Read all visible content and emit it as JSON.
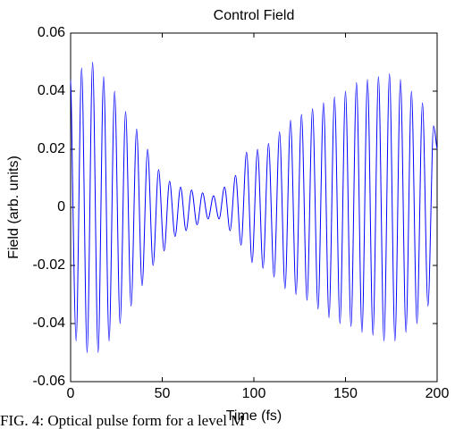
{
  "chart_data": {
    "type": "line",
    "title": "Control Field",
    "xlabel": "Time (fs)",
    "ylabel": "Field (arb. units)",
    "caption": "FIG. 4: Optical pulse form for a level M",
    "x": [
      0,
      3,
      6,
      9,
      12,
      15,
      18,
      21,
      24,
      27,
      30,
      33,
      36,
      39,
      42,
      45,
      48,
      51,
      54,
      57,
      60,
      63,
      66,
      69,
      72,
      75,
      78,
      81,
      84,
      87,
      90,
      93,
      96,
      99,
      102,
      105,
      108,
      111,
      114,
      117,
      120,
      123,
      126,
      129,
      132,
      135,
      138,
      141,
      144,
      147,
      150,
      153,
      156,
      159,
      162,
      165,
      168,
      171,
      174,
      177,
      180,
      183,
      186,
      189,
      192,
      195,
      198,
      200
    ],
    "series": [
      {
        "name": "Control field",
        "color": "#0000ff",
        "values": [
          0.044,
          -0.046,
          0.048,
          -0.05,
          0.05,
          -0.05,
          0.045,
          -0.046,
          0.04,
          -0.04,
          0.033,
          -0.034,
          0.027,
          -0.027,
          0.02,
          -0.02,
          0.013,
          -0.015,
          0.009,
          -0.01,
          0.007,
          -0.008,
          0.006,
          -0.006,
          0.005,
          -0.004,
          0.004,
          -0.004,
          0.007,
          -0.008,
          0.011,
          -0.013,
          0.019,
          -0.019,
          0.02,
          -0.021,
          0.022,
          -0.024,
          0.026,
          -0.028,
          0.03,
          -0.03,
          0.032,
          -0.032,
          0.034,
          -0.035,
          0.036,
          -0.038,
          0.038,
          -0.04,
          0.04,
          -0.041,
          0.043,
          -0.043,
          0.044,
          -0.044,
          0.045,
          -0.046,
          0.046,
          -0.046,
          0.044,
          -0.043,
          0.04,
          -0.04,
          0.036,
          -0.034,
          0.028,
          0.02
        ]
      }
    ],
    "xlim": [
      0,
      200
    ],
    "xticks": [
      0,
      50,
      100,
      150,
      200
    ],
    "ylim": [
      -0.06,
      0.06
    ],
    "yticks": [
      -0.06,
      -0.04,
      -0.02,
      0,
      0.02,
      0.04,
      0.06
    ]
  }
}
